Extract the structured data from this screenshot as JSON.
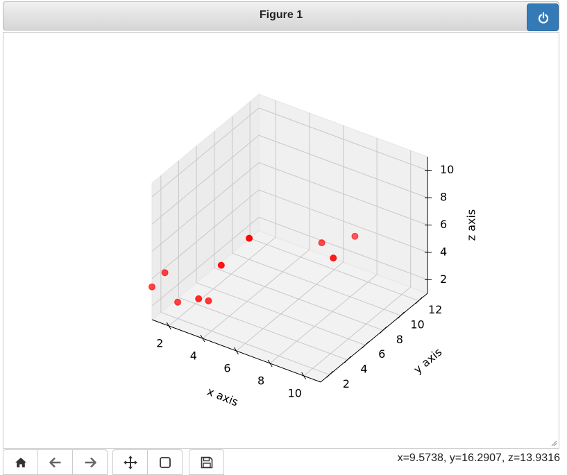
{
  "window": {
    "title": "Figure 1"
  },
  "icons": {
    "power": "power-icon",
    "home": "home-icon",
    "back": "arrow-left-icon",
    "forward": "arrow-right-icon",
    "pan": "move-icon",
    "zoom": "zoom-rect-icon",
    "save": "save-icon"
  },
  "status": {
    "coords": "x=9.5738, y=16.2907, z=13.9316"
  },
  "colors": {
    "accent": "#337ab7",
    "points": "#ff0000"
  },
  "chart_data": {
    "type": "scatter",
    "projection": "3d",
    "title": "",
    "xlabel": "x axis",
    "ylabel": "y axis",
    "zlabel": "z axis",
    "xlim": [
      1,
      11
    ],
    "ylim": [
      1,
      13
    ],
    "zlim": [
      1,
      11
    ],
    "xticks": [
      2,
      4,
      6,
      8,
      10
    ],
    "yticks": [
      2,
      4,
      6,
      8,
      10,
      12
    ],
    "zticks": [
      2,
      4,
      6,
      8,
      10
    ],
    "grid": true,
    "series": [
      {
        "color": "#ff0000",
        "points": [
          {
            "x": 1.0,
            "y": 1.0,
            "z": 3.4
          },
          {
            "x": 1.5,
            "y": 1.5,
            "z": 4.4
          },
          {
            "x": 3.5,
            "y": 1.5,
            "z": 3.4
          },
          {
            "x": 5.0,
            "y": 1.2,
            "z": 6.7
          },
          {
            "x": 6.5,
            "y": 1.5,
            "z": 9.2
          },
          {
            "x": 2.0,
            "y": 2.0,
            "z": 2.2
          },
          {
            "x": 3.4,
            "y": 2.8,
            "z": 2.5
          },
          {
            "x": 8.9,
            "y": 6.4,
            "z": 6.2
          },
          {
            "x": 7.0,
            "y": 8.7,
            "z": 5.2
          },
          {
            "x": 7.7,
            "y": 11.1,
            "z": 4.7
          }
        ]
      }
    ]
  }
}
